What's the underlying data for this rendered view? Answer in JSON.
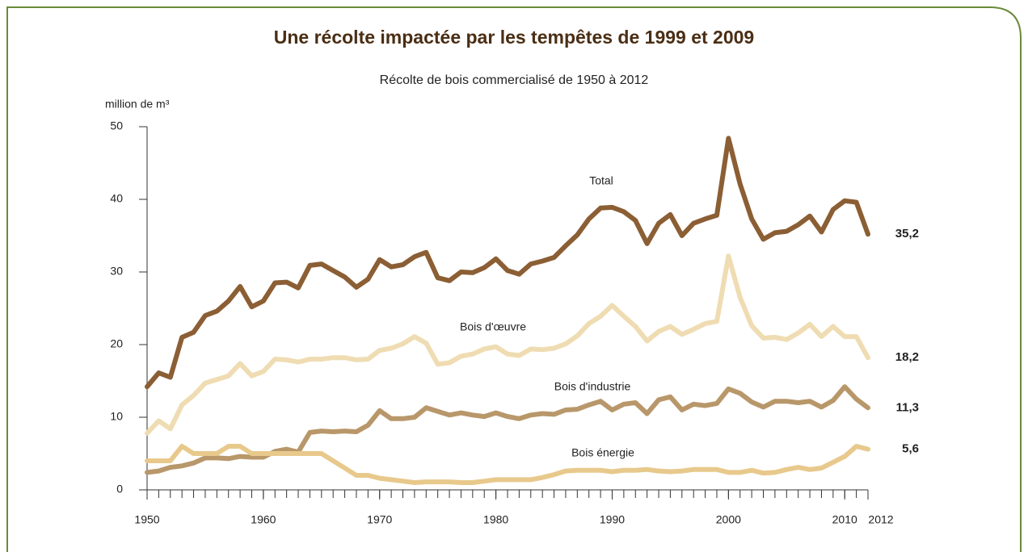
{
  "chart_data": {
    "type": "line",
    "title": "Une récolte impactée par les tempêtes de 1999 et 2009",
    "subtitle": "Récolte de bois commercialisé de 1950 à 2012",
    "y_label": "million de m³",
    "x": [
      1950,
      1951,
      1952,
      1953,
      1954,
      1955,
      1956,
      1957,
      1958,
      1959,
      1960,
      1961,
      1962,
      1963,
      1964,
      1965,
      1966,
      1967,
      1968,
      1969,
      1970,
      1971,
      1972,
      1973,
      1974,
      1975,
      1976,
      1977,
      1978,
      1979,
      1980,
      1981,
      1982,
      1983,
      1984,
      1985,
      1986,
      1987,
      1988,
      1989,
      1990,
      1991,
      1992,
      1993,
      1994,
      1995,
      1996,
      1997,
      1998,
      1999,
      2000,
      2001,
      2002,
      2003,
      2004,
      2005,
      2006,
      2007,
      2008,
      2009,
      2010,
      2011,
      2012
    ],
    "xlim": [
      1950,
      2012
    ],
    "xticks": [
      1950,
      1960,
      1970,
      1980,
      1990,
      2000,
      2010,
      2012
    ],
    "ylim": [
      0,
      50
    ],
    "yticks": [
      0,
      10,
      20,
      30,
      40,
      50
    ],
    "grid": false,
    "series": [
      {
        "name": "Total",
        "color": "#8b5e34",
        "last_label": "35,2",
        "values": [
          14.2,
          16.1,
          15.5,
          21,
          21.7,
          24,
          24.6,
          26,
          28,
          25.2,
          26,
          28.5,
          28.6,
          27.8,
          30.9,
          31.1,
          30.2,
          29.3,
          27.9,
          29,
          31.7,
          30.7,
          31,
          32.1,
          32.7,
          29.2,
          28.8,
          30,
          29.9,
          30.6,
          31.8,
          30.2,
          29.7,
          31.1,
          31.5,
          32,
          33.6,
          35.1,
          37.3,
          38.8,
          38.9,
          38.3,
          37.1,
          33.9,
          36.7,
          37.9,
          35,
          36.7,
          37.3,
          37.8,
          48.4,
          42.1,
          37.3,
          34.5,
          35.4,
          35.6,
          36.5,
          37.7,
          35.5,
          38.6,
          39.8,
          39.6,
          35.2
        ]
      },
      {
        "name": "Bois d'œuvre",
        "color": "#efdcb2",
        "last_label": "18,2",
        "values": [
          7.8,
          9.5,
          8.4,
          11.7,
          13,
          14.7,
          15.2,
          15.7,
          17.4,
          15.7,
          16.3,
          18,
          17.9,
          17.6,
          18,
          18,
          18.2,
          18.2,
          17.9,
          18,
          19.2,
          19.5,
          20.1,
          21.1,
          20.2,
          17.3,
          17.5,
          18.4,
          18.7,
          19.4,
          19.7,
          18.7,
          18.5,
          19.4,
          19.3,
          19.5,
          20.1,
          21.2,
          22.9,
          23.9,
          25.4,
          23.9,
          22.5,
          20.5,
          21.8,
          22.5,
          21.4,
          22.1,
          22.9,
          23.2,
          32.2,
          26.5,
          22.6,
          20.9,
          21,
          20.7,
          21.6,
          22.8,
          21.1,
          22.5,
          21.1,
          21.1,
          18.2
        ]
      },
      {
        "name": "Bois d'industrie",
        "color": "#b8976a",
        "last_label": "11,3",
        "values": [
          2.4,
          2.6,
          3.1,
          3.3,
          3.7,
          4.4,
          4.4,
          4.3,
          4.6,
          4.5,
          4.5,
          5.3,
          5.6,
          5.2,
          7.9,
          8.1,
          8,
          8.1,
          8,
          8.9,
          10.9,
          9.8,
          9.8,
          10,
          11.3,
          10.8,
          10.3,
          10.6,
          10.3,
          10.1,
          10.6,
          10.1,
          9.8,
          10.3,
          10.5,
          10.4,
          11,
          11.1,
          11.7,
          12.2,
          11,
          11.8,
          12,
          10.5,
          12.4,
          12.8,
          11,
          11.8,
          11.6,
          11.9,
          13.9,
          13.3,
          12.1,
          11.4,
          12.2,
          12.2,
          12,
          12.2,
          11.4,
          12.3,
          14.2,
          12.5,
          11.3
        ]
      },
      {
        "name": "Bois énergie",
        "color": "#e8c98c",
        "last_label": "5,6",
        "values": [
          4,
          4,
          4,
          6,
          5,
          5,
          5,
          6,
          6,
          5,
          5,
          5,
          5,
          5,
          5,
          5,
          4,
          3,
          2,
          2,
          1.6,
          1.4,
          1.2,
          1,
          1.1,
          1.1,
          1.1,
          1,
          1,
          1.2,
          1.4,
          1.4,
          1.4,
          1.4,
          1.7,
          2.1,
          2.6,
          2.7,
          2.7,
          2.7,
          2.5,
          2.7,
          2.7,
          2.8,
          2.6,
          2.5,
          2.6,
          2.8,
          2.8,
          2.8,
          2.4,
          2.4,
          2.7,
          2.3,
          2.4,
          2.8,
          3.1,
          2.8,
          3,
          3.8,
          4.6,
          6,
          5.6
        ]
      }
    ]
  }
}
